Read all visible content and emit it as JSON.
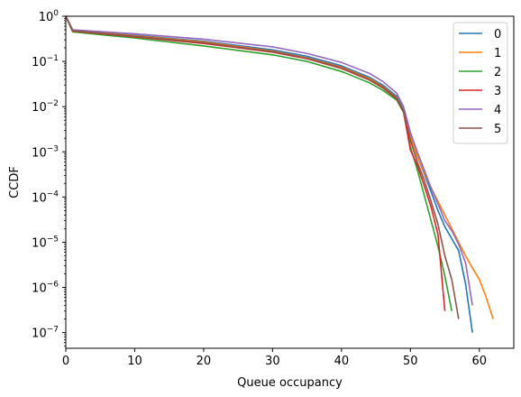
{
  "chart_data": {
    "type": "line",
    "xlabel": "Queue occupancy",
    "ylabel": "CCDF",
    "xlim": [
      0,
      65
    ],
    "ylim": [
      4.5e-08,
      1
    ],
    "yscale": "log",
    "grid": false,
    "legend_position": "top-right",
    "x_ticks": [
      0,
      10,
      20,
      30,
      40,
      50,
      60
    ],
    "y_ticks": [
      {
        "value": 1,
        "base": "10",
        "exp": "0"
      },
      {
        "value": 0.1,
        "base": "10",
        "exp": "−1"
      },
      {
        "value": 0.01,
        "base": "10",
        "exp": "−2"
      },
      {
        "value": 0.001,
        "base": "10",
        "exp": "−3"
      },
      {
        "value": 0.0001,
        "base": "10",
        "exp": "−4"
      },
      {
        "value": 1e-05,
        "base": "10",
        "exp": "−5"
      },
      {
        "value": 1e-06,
        "base": "10",
        "exp": "−6"
      },
      {
        "value": 1e-07,
        "base": "10",
        "exp": "−7"
      }
    ],
    "series": [
      {
        "name": "0",
        "color": "#1f77b4",
        "x": [
          0,
          1,
          10,
          20,
          30,
          35,
          40,
          44,
          46,
          48,
          49,
          50,
          51,
          52,
          53,
          54,
          55,
          56,
          57,
          58,
          59
        ],
        "y": [
          1,
          0.49,
          0.38,
          0.28,
          0.18,
          0.13,
          0.08,
          0.045,
          0.03,
          0.017,
          0.0085,
          0.0022,
          0.0008,
          0.00033,
          0.00013,
          5e-05,
          2.2e-05,
          1.2e-05,
          6.5e-06,
          1.2e-06,
          1e-07
        ]
      },
      {
        "name": "1",
        "color": "#ff7f0e",
        "x": [
          0,
          1,
          10,
          20,
          30,
          35,
          40,
          44,
          46,
          48,
          49,
          50,
          51,
          52,
          53,
          54,
          55,
          56,
          57,
          58,
          59,
          60,
          61,
          62
        ],
        "y": [
          1,
          0.49,
          0.37,
          0.27,
          0.17,
          0.12,
          0.075,
          0.042,
          0.028,
          0.016,
          0.008,
          0.0022,
          0.0008,
          0.00035,
          0.00016,
          8e-05,
          4e-05,
          2e-05,
          1e-05,
          5e-06,
          2.7e-06,
          1.5e-06,
          6e-07,
          2e-07
        ]
      },
      {
        "name": "2",
        "color": "#2ca02c",
        "x": [
          0,
          1,
          10,
          20,
          30,
          35,
          40,
          44,
          46,
          48,
          49,
          50,
          51,
          52,
          53,
          54,
          55,
          56
        ],
        "y": [
          1,
          0.45,
          0.33,
          0.22,
          0.14,
          0.1,
          0.06,
          0.034,
          0.023,
          0.014,
          0.0075,
          0.0013,
          0.0004,
          0.00011,
          3e-05,
          8e-06,
          1.8e-06,
          3e-07
        ]
      },
      {
        "name": "3",
        "color": "#d62728",
        "x": [
          0,
          1,
          10,
          20,
          30,
          35,
          40,
          44,
          46,
          48,
          49,
          50,
          51,
          52,
          53,
          54,
          55
        ],
        "y": [
          1,
          0.47,
          0.35,
          0.25,
          0.16,
          0.115,
          0.07,
          0.039,
          0.026,
          0.015,
          0.0078,
          0.0011,
          0.0005,
          0.00018,
          6e-05,
          1.5e-05,
          3e-07
        ]
      },
      {
        "name": "4",
        "color": "#9467bd",
        "x": [
          0,
          1,
          10,
          20,
          30,
          35,
          40,
          44,
          46,
          48,
          49,
          50,
          51,
          52,
          53,
          54,
          55,
          56,
          57,
          58,
          59
        ],
        "y": [
          1,
          0.5,
          0.41,
          0.31,
          0.21,
          0.15,
          0.095,
          0.055,
          0.036,
          0.02,
          0.01,
          0.0027,
          0.001,
          0.0004,
          0.00016,
          7e-05,
          3e-05,
          1.8e-05,
          9e-06,
          3.5e-06,
          4e-07
        ]
      },
      {
        "name": "5",
        "color": "#8c564b",
        "x": [
          0,
          1,
          10,
          20,
          30,
          35,
          40,
          44,
          46,
          48,
          49,
          50,
          51,
          52,
          53,
          54,
          55,
          56,
          57
        ],
        "y": [
          1,
          0.48,
          0.36,
          0.26,
          0.165,
          0.118,
          0.072,
          0.04,
          0.027,
          0.0155,
          0.008,
          0.0018,
          0.0006,
          0.00024,
          8e-05,
          2.5e-05,
          5e-06,
          1.5e-06,
          2e-07
        ]
      }
    ]
  }
}
